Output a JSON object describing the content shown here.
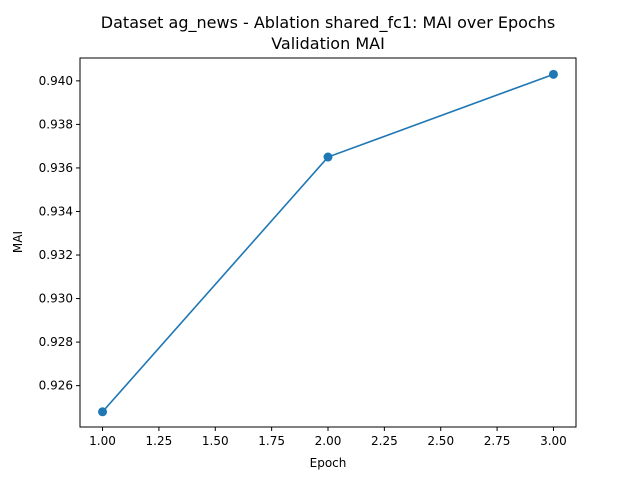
{
  "chart_data": {
    "type": "line",
    "title": "Dataset ag_news - Ablation shared_fc1: MAI over Epochs",
    "subtitle": "Validation MAI",
    "xlabel": "Epoch",
    "ylabel": "MAI",
    "xlim": [
      0.9,
      3.1
    ],
    "ylim": [
      0.9241,
      0.94105
    ],
    "xticks": [
      1.0,
      1.25,
      1.5,
      1.75,
      2.0,
      2.25,
      2.5,
      2.75,
      3.0
    ],
    "xtick_labels": [
      "1.00",
      "1.25",
      "1.50",
      "1.75",
      "2.00",
      "2.25",
      "2.50",
      "2.75",
      "3.00"
    ],
    "yticks": [
      0.926,
      0.928,
      0.93,
      0.932,
      0.934,
      0.936,
      0.938,
      0.94
    ],
    "ytick_labels": [
      "0.926",
      "0.928",
      "0.930",
      "0.932",
      "0.934",
      "0.936",
      "0.938",
      "0.940"
    ],
    "grid": false,
    "series": [
      {
        "x": [
          1,
          2,
          3
        ],
        "y": [
          0.9248,
          0.9365,
          0.9403
        ],
        "color": "#1f77b4",
        "marker": "circle"
      }
    ]
  }
}
